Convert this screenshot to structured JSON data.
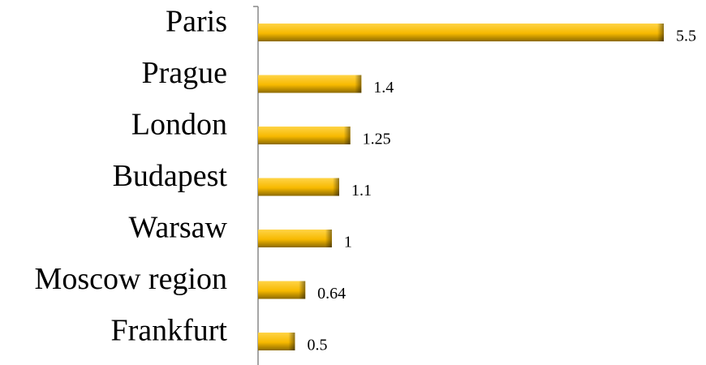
{
  "chart_data": {
    "type": "bar",
    "orientation": "horizontal",
    "categories": [
      "Paris",
      "Prague",
      "London",
      "Budapest",
      "Warsaw",
      "Moscow region",
      "Frankfurt"
    ],
    "values": [
      5.5,
      1.4,
      1.25,
      1.1,
      1,
      0.64,
      0.5
    ],
    "color": "#ffc000"
  }
}
